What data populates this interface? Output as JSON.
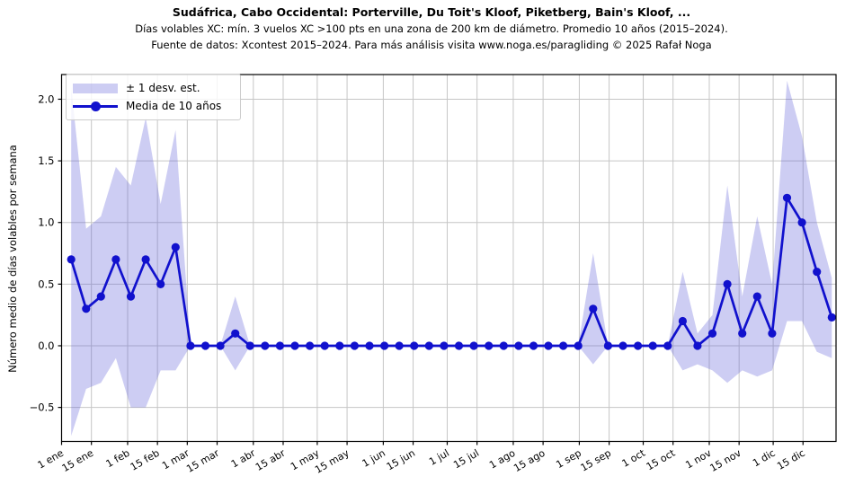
{
  "header": {
    "title": "Sudáfrica, Cabo Occidental: Porterville, Du Toit's Kloof, Piketberg, Bain's Kloof, ...",
    "subtitle": "Días volables XC: mín. 3 vuelos XC >100 pts en una zona de 200 km de diámetro. Promedio 10 años (2015–2024).",
    "source": "Fuente de datos: Xcontest 2015–2024. Para más análisis visita www.noga.es/paragliding © 2025 Rafał Noga"
  },
  "legend": {
    "band_label": "± 1 desv. est.",
    "line_label": "Media de 10 años",
    "position": "upper left"
  },
  "colors": {
    "line": "#1111cd",
    "band_base": "#5a5ad7",
    "band_fill": "rgba(90,90,215,0.30)",
    "grid": "#c6c6c6",
    "axis": "#000000",
    "text": "#000000"
  },
  "chart_data": {
    "type": "line",
    "title": "Sudáfrica, Cabo Occidental: Porterville, Du Toit's Kloof, Piketberg, Bain's Kloof, ...",
    "xlabel": "",
    "ylabel": "Número medio de días volables por semana",
    "grid": true,
    "ylim": [
      -0.776,
      2.2
    ],
    "xlim_days": [
      1,
      364.5
    ],
    "y_ticks": [
      {
        "label": "−0.5",
        "value": -0.5
      },
      {
        "label": "0.0",
        "value": 0.0
      },
      {
        "label": "0.5",
        "value": 0.5
      },
      {
        "label": "1.0",
        "value": 1.0
      },
      {
        "label": "1.5",
        "value": 1.5
      },
      {
        "label": "2.0",
        "value": 2.0
      }
    ],
    "x_ticks": [
      {
        "label": "1 ene",
        "doy": 1
      },
      {
        "label": "15 ene",
        "doy": 15
      },
      {
        "label": "1 feb",
        "doy": 32
      },
      {
        "label": "15 feb",
        "doy": 46
      },
      {
        "label": "1 mar",
        "doy": 60
      },
      {
        "label": "15 mar",
        "doy": 74
      },
      {
        "label": "1 abr",
        "doy": 91
      },
      {
        "label": "15 abr",
        "doy": 105
      },
      {
        "label": "1 may",
        "doy": 121
      },
      {
        "label": "15 may",
        "doy": 135
      },
      {
        "label": "1 jun",
        "doy": 152
      },
      {
        "label": "15 jun",
        "doy": 166
      },
      {
        "label": "1 jul",
        "doy": 182
      },
      {
        "label": "15 jul",
        "doy": 196
      },
      {
        "label": "1 ago",
        "doy": 213
      },
      {
        "label": "15 ago",
        "doy": 227
      },
      {
        "label": "1 sep",
        "doy": 244
      },
      {
        "label": "15 sep",
        "doy": 258
      },
      {
        "label": "1 oct",
        "doy": 274
      },
      {
        "label": "15 oct",
        "doy": 288
      },
      {
        "label": "1 nov",
        "doy": 305
      },
      {
        "label": "15 nov",
        "doy": 319
      },
      {
        "label": "1 dic",
        "doy": 335
      },
      {
        "label": "15 dic",
        "doy": 349
      }
    ],
    "series": [
      {
        "name": "Media de 10 años",
        "style": "line+markers",
        "week_start_doy": 5.5,
        "step_days": 7,
        "values": [
          0.7,
          0.3,
          0.4,
          0.7,
          0.4,
          0.7,
          0.5,
          0.8,
          0,
          0,
          0,
          0.1,
          0,
          0,
          0,
          0,
          0,
          0,
          0,
          0,
          0,
          0,
          0,
          0,
          0,
          0,
          0,
          0,
          0,
          0,
          0,
          0,
          0,
          0,
          0,
          0.3,
          0,
          0,
          0,
          0,
          0,
          0.2,
          0,
          0.1,
          0.5,
          0.1,
          0.4,
          0.1,
          1.2,
          1.0,
          0.6,
          0.23
        ]
      },
      {
        "name": "± 1 desv. est.",
        "style": "band",
        "week_start_doy": 5.5,
        "step_days": 7,
        "upper": [
          2.1,
          0.95,
          1.05,
          1.45,
          1.3,
          1.85,
          1.15,
          1.75,
          0,
          0,
          0,
          0.4,
          0,
          0,
          0,
          0,
          0,
          0,
          0,
          0,
          0,
          0,
          0,
          0,
          0,
          0,
          0,
          0,
          0,
          0,
          0,
          0,
          0,
          0,
          0,
          0.75,
          0,
          0,
          0,
          0,
          0,
          0.6,
          0.1,
          0.25,
          1.3,
          0.4,
          1.05,
          0.5,
          2.15,
          1.7,
          1.0,
          0.55
        ],
        "lower": [
          -0.73,
          -0.35,
          -0.3,
          -0.1,
          -0.5,
          -0.5,
          -0.2,
          -0.2,
          0,
          0,
          0,
          -0.2,
          0,
          0,
          0,
          0,
          0,
          0,
          0,
          0,
          0,
          0,
          0,
          0,
          0,
          0,
          0,
          0,
          0,
          0,
          0,
          0,
          0,
          0,
          0,
          -0.15,
          0,
          0,
          0,
          0,
          0,
          -0.2,
          -0.15,
          -0.2,
          -0.3,
          -0.2,
          -0.25,
          -0.2,
          0.2,
          0.2,
          -0.05,
          -0.1
        ]
      }
    ]
  }
}
